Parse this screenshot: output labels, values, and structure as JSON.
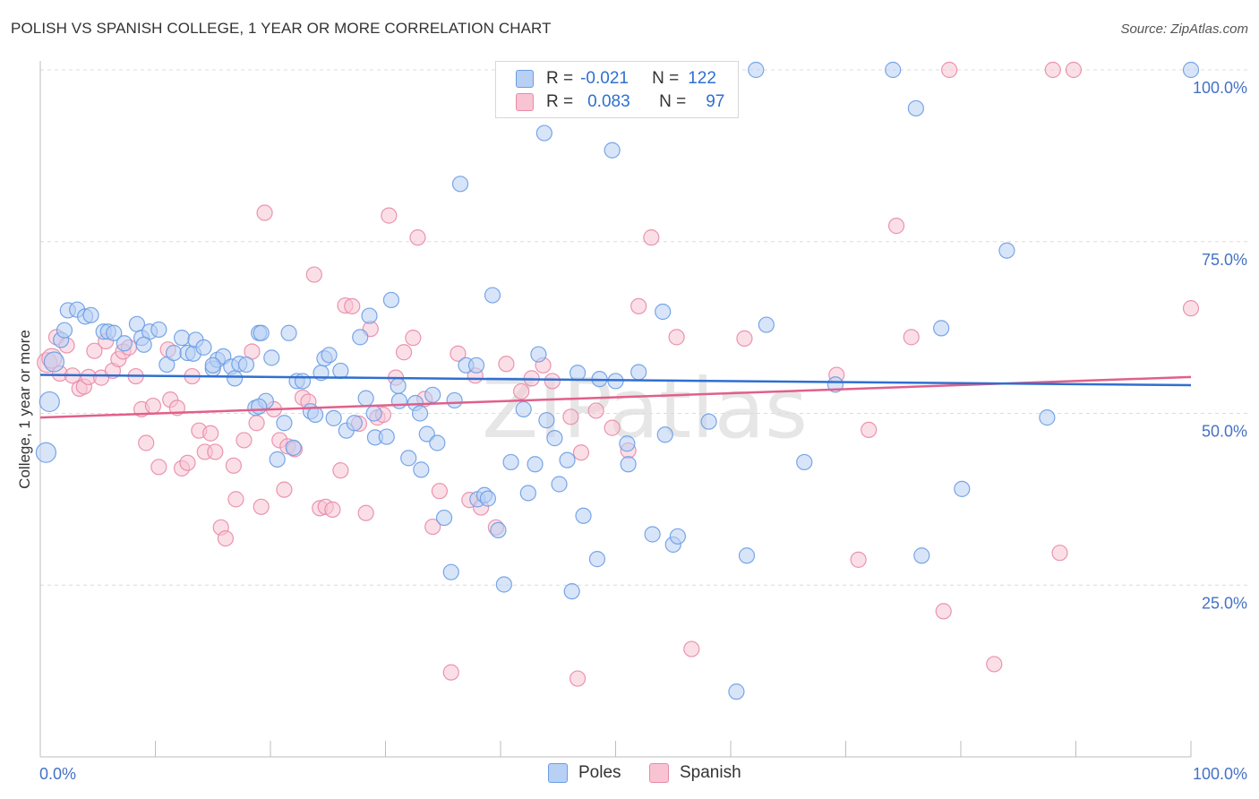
{
  "title": "POLISH VS SPANISH COLLEGE, 1 YEAR OR MORE CORRELATION CHART",
  "source": "Source: ZipAtlas.com",
  "watermark": "ZIPatlas",
  "legend": {
    "rows": [
      {
        "r_label": "R =",
        "r_value": "-0.021",
        "n_label": "N =",
        "n_value": "122"
      },
      {
        "r_label": "R =",
        "r_value": "0.083",
        "n_label": "N =",
        "n_value": "97"
      }
    ]
  },
  "bottom_legend": [
    "Poles",
    "Spanish"
  ],
  "colors": {
    "poles": "#6a9ce4",
    "poles_fill": "#b8d0f4",
    "spanish": "#e88aa8",
    "spanish_fill": "#f8c4d4",
    "poles_line": "#2f6fd0",
    "spanish_line": "#e0608a"
  },
  "chart_data": {
    "type": "scatter",
    "title": "POLISH VS SPANISH COLLEGE, 1 YEAR OR MORE CORRELATION CHART",
    "xlabel": "",
    "ylabel": "College, 1 year or more",
    "xlim": [
      0,
      100
    ],
    "ylim": [
      0,
      100
    ],
    "x_tick_labels": [
      "0.0%",
      "100.0%"
    ],
    "y_ticks": [
      25,
      50,
      75,
      100
    ],
    "y_tick_labels": [
      "25.0%",
      "50.0%",
      "75.0%",
      "100.0%"
    ],
    "grid": "horizontal dashed",
    "legend_position": "top-center",
    "series": [
      {
        "name": "Poles",
        "r": -0.021,
        "n": 122,
        "trend": {
          "x": [
            0,
            100
          ],
          "y": [
            55.6,
            54.1
          ]
        },
        "points": [
          [
            0.5,
            44.3
          ],
          [
            0.8,
            51.7
          ],
          [
            1.2,
            57.5
          ],
          [
            1.8,
            60.7
          ],
          [
            2.1,
            62.1
          ],
          [
            2.4,
            65
          ],
          [
            3.2,
            65.1
          ],
          [
            3.9,
            64.1
          ],
          [
            4.4,
            64.3
          ],
          [
            5.5,
            61.9
          ],
          [
            5.9,
            61.9
          ],
          [
            6.4,
            61.7
          ],
          [
            7.3,
            60.2
          ],
          [
            8.4,
            63
          ],
          [
            8.8,
            61
          ],
          [
            9.5,
            61.9
          ],
          [
            10.3,
            62.2
          ],
          [
            11,
            57.1
          ],
          [
            11.6,
            58.8
          ],
          [
            12.3,
            61
          ],
          [
            12.8,
            58.8
          ],
          [
            13.3,
            58.7
          ],
          [
            13.5,
            60.7
          ],
          [
            14.2,
            59.6
          ],
          [
            15,
            56.5
          ],
          [
            15.4,
            57.8
          ],
          [
            15.9,
            58.3
          ],
          [
            16.6,
            56.8
          ],
          [
            16.9,
            55.1
          ],
          [
            17.3,
            57.2
          ],
          [
            17.9,
            57.1
          ],
          [
            18.7,
            50.8
          ],
          [
            19,
            61.7
          ],
          [
            19.2,
            61.7
          ],
          [
            19.6,
            51.8
          ],
          [
            20.1,
            58.1
          ],
          [
            20.6,
            43.3
          ],
          [
            21.2,
            48.6
          ],
          [
            21.6,
            61.7
          ],
          [
            22.3,
            54.7
          ],
          [
            22.8,
            54.7
          ],
          [
            23.5,
            50.3
          ],
          [
            23.9,
            49.8
          ],
          [
            24.4,
            55.9
          ],
          [
            24.7,
            58
          ],
          [
            25.1,
            58.5
          ],
          [
            25.5,
            49.3
          ],
          [
            26.1,
            56.2
          ],
          [
            26.6,
            47.5
          ],
          [
            27.3,
            48.6
          ],
          [
            27.8,
            61.1
          ],
          [
            28.3,
            52.2
          ],
          [
            28.6,
            64.2
          ],
          [
            29.1,
            46.5
          ],
          [
            30.1,
            46.6
          ],
          [
            30.5,
            66.5
          ],
          [
            31.1,
            54
          ],
          [
            31.2,
            51.8
          ],
          [
            32,
            43.5
          ],
          [
            32.6,
            51.5
          ],
          [
            33.1,
            41.8
          ],
          [
            33.6,
            47
          ],
          [
            34.1,
            52.7
          ],
          [
            34.5,
            45.7
          ],
          [
            35.1,
            34.8
          ],
          [
            35.7,
            26.9
          ],
          [
            36,
            51.9
          ],
          [
            36.5,
            83.4
          ],
          [
            37,
            57
          ],
          [
            38,
            37.5
          ],
          [
            38.6,
            38.1
          ],
          [
            38.9,
            37.6
          ],
          [
            39.3,
            67.2
          ],
          [
            39.8,
            33
          ],
          [
            40.3,
            25.1
          ],
          [
            40.9,
            42.9
          ],
          [
            42,
            50.6
          ],
          [
            42.4,
            38.4
          ],
          [
            43,
            42.6
          ],
          [
            43.3,
            58.6
          ],
          [
            43.8,
            90.8
          ],
          [
            44.7,
            46.4
          ],
          [
            45.1,
            39.7
          ],
          [
            45.8,
            43.2
          ],
          [
            46.2,
            24.1
          ],
          [
            46.7,
            55.9
          ],
          [
            47.2,
            35.1
          ],
          [
            48.4,
            28.8
          ],
          [
            48.6,
            55
          ],
          [
            49.7,
            88.3
          ],
          [
            50,
            54.7
          ],
          [
            51,
            45.6
          ],
          [
            51.1,
            42.6
          ],
          [
            53.2,
            32.4
          ],
          [
            54.1,
            64.8
          ],
          [
            54.3,
            46.9
          ],
          [
            55,
            30.9
          ],
          [
            55.4,
            32.1
          ],
          [
            58.1,
            48.8
          ],
          [
            60.5,
            9.5
          ],
          [
            61.4,
            29.3
          ],
          [
            62.2,
            100
          ],
          [
            63.1,
            62.9
          ],
          [
            66.4,
            42.9
          ],
          [
            69.1,
            54.2
          ],
          [
            74.1,
            100
          ],
          [
            76.1,
            94.4
          ],
          [
            76.6,
            29.3
          ],
          [
            78.3,
            62.4
          ],
          [
            80.1,
            39
          ],
          [
            84,
            73.7
          ],
          [
            87.5,
            49.4
          ],
          [
            100,
            100
          ],
          [
            37.9,
            57
          ],
          [
            22,
            45
          ],
          [
            15,
            57
          ],
          [
            9,
            60
          ],
          [
            29,
            50
          ],
          [
            19,
            51
          ],
          [
            44,
            49
          ],
          [
            52,
            56
          ],
          [
            33,
            50
          ]
        ]
      },
      {
        "name": "Spanish",
        "r": 0.083,
        "n": 97,
        "trend": {
          "x": [
            0,
            100
          ],
          "y": [
            49.4,
            55.3
          ]
        },
        "points": [
          [
            0.6,
            57.4
          ],
          [
            1,
            58
          ],
          [
            1.4,
            61.1
          ],
          [
            1.7,
            55.8
          ],
          [
            2.3,
            59.9
          ],
          [
            2.8,
            55.5
          ],
          [
            3.4,
            53.6
          ],
          [
            3.8,
            53.9
          ],
          [
            4.2,
            55.3
          ],
          [
            4.7,
            59.1
          ],
          [
            5.3,
            55.2
          ],
          [
            5.7,
            60.5
          ],
          [
            6.3,
            56.2
          ],
          [
            6.8,
            57.9
          ],
          [
            7.2,
            59
          ],
          [
            7.7,
            59.6
          ],
          [
            8.3,
            55.4
          ],
          [
            8.8,
            50.6
          ],
          [
            9.2,
            45.7
          ],
          [
            9.8,
            51.1
          ],
          [
            10.3,
            42.2
          ],
          [
            11.1,
            59.3
          ],
          [
            11.3,
            52
          ],
          [
            11.9,
            50.8
          ],
          [
            12.3,
            42
          ],
          [
            12.8,
            42.8
          ],
          [
            13.2,
            55.4
          ],
          [
            13.8,
            47.5
          ],
          [
            14.3,
            44.4
          ],
          [
            14.8,
            47.1
          ],
          [
            15.2,
            44.4
          ],
          [
            15.7,
            33.4
          ],
          [
            16.1,
            31.8
          ],
          [
            16.8,
            42.4
          ],
          [
            17,
            37.5
          ],
          [
            17.7,
            46.1
          ],
          [
            18.4,
            59
          ],
          [
            18.8,
            48.6
          ],
          [
            19.2,
            36.4
          ],
          [
            19.5,
            79.2
          ],
          [
            20.3,
            50.6
          ],
          [
            20.8,
            46.1
          ],
          [
            21.2,
            38.9
          ],
          [
            21.5,
            45.2
          ],
          [
            22.1,
            44.8
          ],
          [
            22.8,
            52.3
          ],
          [
            23.3,
            51.7
          ],
          [
            23.8,
            70.2
          ],
          [
            24.3,
            36.2
          ],
          [
            24.8,
            36.4
          ],
          [
            25.4,
            36
          ],
          [
            26.1,
            41.7
          ],
          [
            26.5,
            65.7
          ],
          [
            27.1,
            65.6
          ],
          [
            27.7,
            48.5
          ],
          [
            28.3,
            35.5
          ],
          [
            28.7,
            62.3
          ],
          [
            29.3,
            49.4
          ],
          [
            29.8,
            49.8
          ],
          [
            30.3,
            78.8
          ],
          [
            30.9,
            55.2
          ],
          [
            31.6,
            58.9
          ],
          [
            32.4,
            61
          ],
          [
            32.8,
            75.6
          ],
          [
            33.4,
            52.1
          ],
          [
            34.1,
            33.5
          ],
          [
            34.7,
            38.7
          ],
          [
            35.7,
            12.3
          ],
          [
            36.3,
            58.7
          ],
          [
            37.3,
            37.4
          ],
          [
            37.8,
            55.5
          ],
          [
            38.3,
            36.3
          ],
          [
            39.6,
            33.4
          ],
          [
            40.5,
            57.2
          ],
          [
            41.8,
            53.2
          ],
          [
            42.7,
            55.1
          ],
          [
            43.7,
            57
          ],
          [
            44.5,
            54.7
          ],
          [
            46.1,
            49.5
          ],
          [
            46.7,
            11.4
          ],
          [
            47,
            44.3
          ],
          [
            48.3,
            50.4
          ],
          [
            49.7,
            47.9
          ],
          [
            51.1,
            44.6
          ],
          [
            52,
            65.6
          ],
          [
            53.1,
            75.6
          ],
          [
            55.3,
            61.1
          ],
          [
            56.6,
            15.7
          ],
          [
            61.2,
            60.9
          ],
          [
            69.2,
            55.6
          ],
          [
            71.1,
            28.7
          ],
          [
            72,
            47.6
          ],
          [
            74.4,
            77.3
          ],
          [
            75.7,
            61.1
          ],
          [
            78.5,
            21.2
          ],
          [
            79,
            100
          ],
          [
            82.9,
            13.5
          ]
        ]
      }
    ],
    "extra_spanish_points": [
      [
        88,
        100
      ],
      [
        89.8,
        100
      ],
      [
        88.6,
        29.7
      ],
      [
        100,
        65.3
      ]
    ]
  }
}
